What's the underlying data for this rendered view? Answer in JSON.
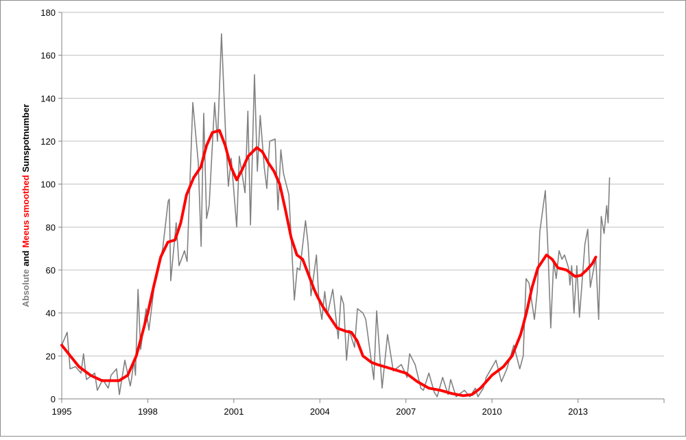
{
  "chart_data": {
    "type": "line",
    "y_label": [
      {
        "text": "Absolute",
        "color": "#808080"
      },
      {
        "text": "and",
        "color": "#000000"
      },
      {
        "text": "Meeus smoothed",
        "color": "#ff0000"
      },
      {
        "text": "Sunspotnumber",
        "color": "#000000"
      }
    ],
    "xlim": [
      1995,
      2016
    ],
    "xticks": [
      1995,
      1998,
      2001,
      2004,
      2007,
      2010,
      2013
    ],
    "ylim": [
      0,
      180
    ],
    "yticks": [
      0,
      20,
      40,
      60,
      80,
      100,
      120,
      140,
      160,
      180
    ],
    "grid": true,
    "series": [
      {
        "name": "Absolute",
        "color": "#808080",
        "x": [
          1995.0,
          1995.19,
          1995.29,
          1995.48,
          1995.67,
          1995.76,
          1995.86,
          1996.15,
          1996.24,
          1996.43,
          1996.62,
          1996.72,
          1996.91,
          1997.01,
          1997.2,
          1997.39,
          1997.43,
          1997.52,
          1997.57,
          1997.66,
          1997.75,
          1997.94,
          1998.04,
          1998.23,
          1998.32,
          1998.52,
          1998.71,
          1998.75,
          1998.8,
          1998.99,
          1999.09,
          1999.28,
          1999.37,
          1999.57,
          1999.76,
          1999.86,
          1999.95,
          2000.05,
          2000.14,
          2000.33,
          2000.43,
          2000.57,
          2000.72,
          2000.81,
          2000.91,
          2001.1,
          2001.19,
          2001.39,
          2001.49,
          2001.58,
          2001.72,
          2001.82,
          2001.92,
          2002.06,
          2002.15,
          2002.25,
          2002.44,
          2002.54,
          2002.64,
          2002.73,
          2002.92,
          2003.02,
          2003.11,
          2003.21,
          2003.3,
          2003.5,
          2003.59,
          2003.69,
          2003.88,
          2003.97,
          2004.07,
          2004.17,
          2004.26,
          2004.45,
          2004.64,
          2004.74,
          2004.83,
          2004.93,
          2005.02,
          2005.21,
          2005.31,
          2005.5,
          2005.6,
          2005.88,
          2005.98,
          2006.17,
          2006.36,
          2006.56,
          2006.84,
          2007.04,
          2007.13,
          2007.32,
          2007.52,
          2007.61,
          2007.8,
          2007.99,
          2008.09,
          2008.28,
          2008.47,
          2008.56,
          2008.75,
          2009.04,
          2009.23,
          2009.42,
          2009.51,
          2009.7,
          2009.8,
          2010.14,
          2010.33,
          2010.52,
          2010.76,
          2010.97,
          2011.09,
          2011.19,
          2011.29,
          2011.48,
          2011.58,
          2011.67,
          2011.86,
          2011.96,
          2012.05,
          2012.15,
          2012.24,
          2012.34,
          2012.44,
          2012.53,
          2012.67,
          2012.72,
          2012.78,
          2012.86,
          2012.96,
          2013.05,
          2013.24,
          2013.34,
          2013.43,
          2013.62,
          2013.72,
          2013.81,
          2013.91,
          2014.0,
          2014.05,
          2014.1
        ],
        "values": [
          25,
          31,
          14,
          15,
          12,
          21,
          9,
          12,
          4,
          9,
          5,
          11,
          14,
          2,
          18,
          6,
          9,
          18,
          11,
          51,
          23,
          42,
          32,
          53,
          57,
          70,
          92,
          93,
          55,
          82,
          62,
          69,
          64,
          138,
          110,
          71,
          133,
          84,
          90,
          138,
          120,
          170,
          121,
          99,
          112,
          80,
          113,
          96,
          134,
          81,
          151,
          106,
          132,
          108,
          98,
          120,
          121,
          88,
          116,
          105,
          95,
          70,
          46,
          61,
          60,
          83,
          72,
          48,
          67,
          45,
          37,
          50,
          39,
          51,
          28,
          48,
          44,
          18,
          32,
          24,
          42,
          40,
          37,
          9,
          41,
          5,
          30,
          13,
          16,
          10,
          21,
          16,
          5,
          4,
          12,
          3,
          1,
          10,
          2,
          9,
          1,
          4,
          1,
          5,
          1,
          5,
          10,
          18,
          8,
          14,
          25,
          14,
          20,
          56,
          54,
          37,
          50,
          78,
          97,
          67,
          33,
          64,
          56,
          69,
          65,
          67,
          61,
          53,
          62,
          40,
          62,
          38,
          72,
          79,
          52,
          66,
          37,
          85,
          77,
          90,
          82,
          103
        ]
      },
      {
        "name": "Meeus smoothed",
        "color": "#ff0000",
        "x": [
          1995.0,
          1995.3,
          1995.6,
          1996.0,
          1996.4,
          1996.8,
          1997.0,
          1997.3,
          1997.6,
          1997.8,
          1998.0,
          1998.2,
          1998.45,
          1998.7,
          1998.95,
          1999.15,
          1999.35,
          1999.6,
          1999.85,
          2000.05,
          2000.25,
          2000.5,
          2000.7,
          2000.9,
          2001.1,
          2001.3,
          2001.5,
          2001.8,
          2002.0,
          2002.2,
          2002.4,
          2002.6,
          2002.8,
          2003.0,
          2003.2,
          2003.4,
          2003.6,
          2003.8,
          2003.9,
          2004.1,
          2004.3,
          2004.6,
          2004.9,
          2005.1,
          2005.3,
          2005.5,
          2005.8,
          2006.0,
          2006.5,
          2007.0,
          2007.4,
          2007.8,
          2008.2,
          2008.6,
          2009.0,
          2009.3,
          2009.6,
          2010.0,
          2010.4,
          2010.7,
          2011.0,
          2011.2,
          2011.4,
          2011.6,
          2011.9,
          2012.1,
          2012.3,
          2012.6,
          2012.9,
          2013.1,
          2013.3,
          2013.5,
          2013.62
        ],
        "values": [
          25,
          20,
          15,
          11,
          8.5,
          8.5,
          8.5,
          11,
          20,
          30,
          40,
          52,
          66,
          73,
          74,
          82,
          95,
          103,
          108,
          118,
          124,
          125,
          118,
          108,
          102,
          107,
          113,
          117,
          115,
          110,
          106,
          100,
          88,
          75,
          67,
          65,
          58,
          51,
          48,
          43,
          39,
          33,
          31.5,
          31,
          27,
          20,
          17,
          16,
          14,
          12,
          8,
          5,
          4,
          2.5,
          1.5,
          2,
          5,
          11,
          15,
          20,
          30,
          40,
          52,
          61,
          67,
          65,
          61,
          60,
          57,
          57.5,
          60,
          63,
          66
        ]
      }
    ]
  }
}
